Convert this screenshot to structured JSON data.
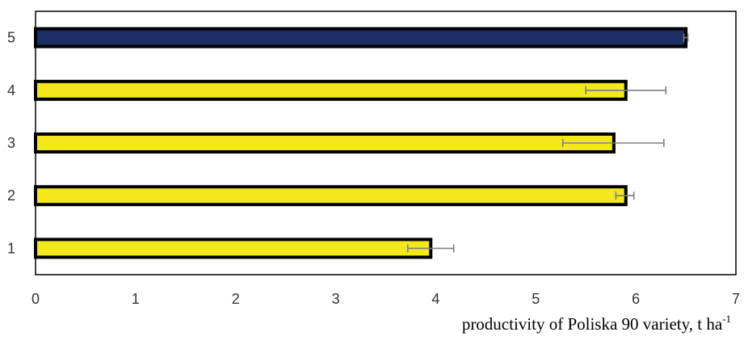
{
  "chart_data": {
    "type": "bar",
    "orientation": "horizontal",
    "categories": [
      "1",
      "2",
      "3",
      "4",
      "5"
    ],
    "values": [
      3.95,
      5.9,
      5.78,
      5.9,
      6.5
    ],
    "error_low": [
      3.72,
      5.8,
      5.27,
      5.5,
      6.48
    ],
    "error_high": [
      4.18,
      5.98,
      6.28,
      6.3,
      6.52
    ],
    "bar_colors": [
      "#f2e81a",
      "#f2e81a",
      "#f2e81a",
      "#f2e81a",
      "#1c2e66"
    ],
    "bar_border_color": "#000000",
    "error_bar_color": "#7f7f7f",
    "xlim": [
      0,
      7
    ],
    "x_ticks": [
      "0",
      "1",
      "2",
      "3",
      "4",
      "5",
      "6",
      "7"
    ],
    "xlabel": {
      "text": "productivity of  Poliska 90  variety, t ha",
      "superscript": "-1"
    },
    "ylabel": "",
    "title": "",
    "grid": false,
    "legend": "none"
  }
}
